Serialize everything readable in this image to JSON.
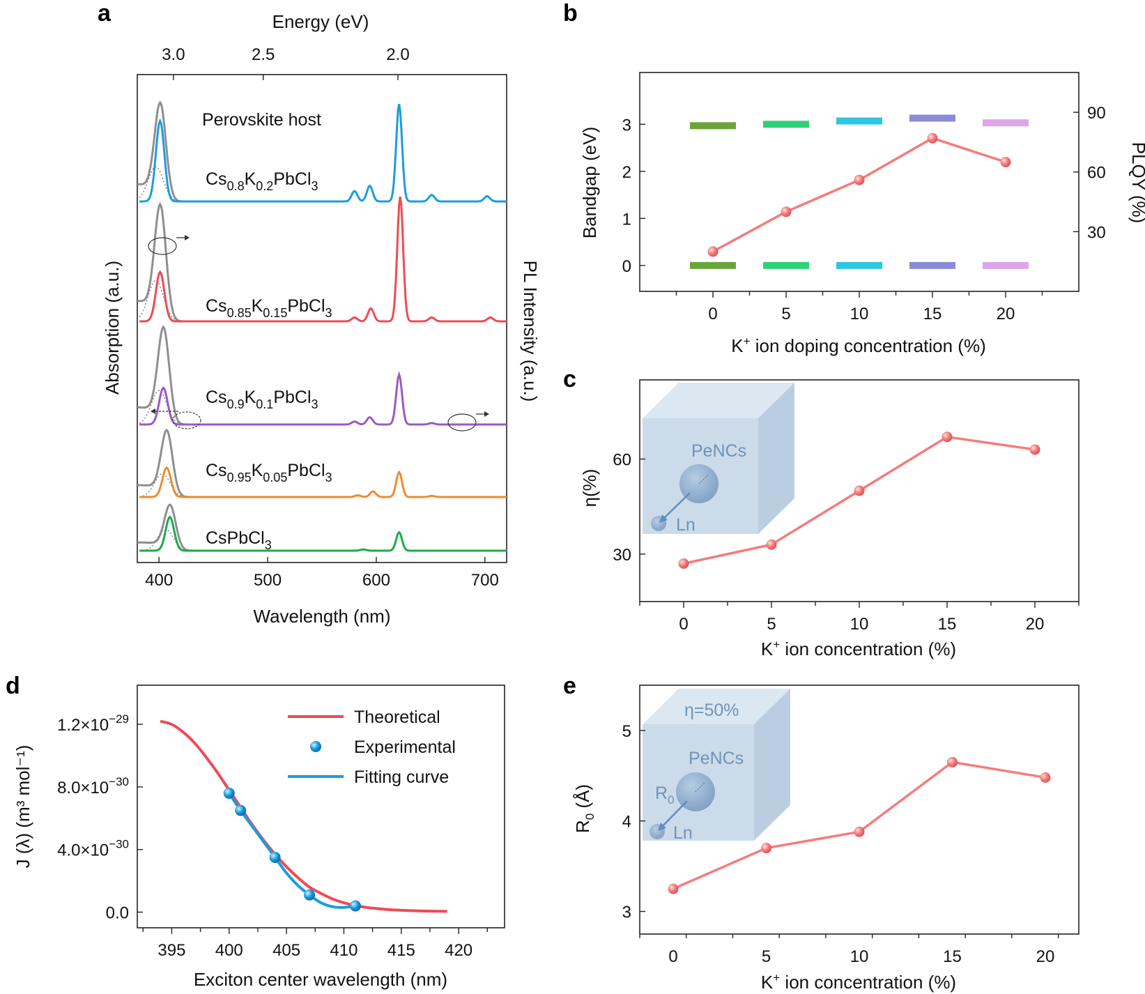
{
  "panels": {
    "a": "a",
    "b": "b",
    "c": "c",
    "d": "d",
    "e": "e"
  },
  "colors": {
    "gray": "#8e8e8e",
    "blue": "#1a9ce0",
    "red": "#ef4a55",
    "purple": "#9b59c6",
    "orange": "#f28a2e",
    "green": "#1aab4a",
    "pink_line": "#f47c7c",
    "inset_box": "#c6d7e8",
    "inset_text": "#6f93b8"
  },
  "chart_data": [
    {
      "panel": "a",
      "type": "line",
      "xlabel": "Wavelength (nm)",
      "x2label": "Energy (eV)",
      "ylabel": "Absorption (a.u.)",
      "y2label": "PL Intensity (a.u.)",
      "xlim": [
        380,
        720
      ],
      "xticks": [
        400,
        500,
        600,
        700
      ],
      "x2ticks": [
        3.0,
        2.5,
        2.0
      ],
      "annotation": "Perovskite host",
      "series": [
        {
          "name": "Cs0.8K0.2PbCl3",
          "label_base": "Cs",
          "sub1": "0.8",
          "mid": "K",
          "sub2": "0.2",
          "tail": "PbCl",
          "sub3": "3",
          "abs_peak_nm": 401,
          "abs_height": 1.0,
          "pl_host_nm": 401,
          "pl_host_height": 0.62,
          "pl_ln_peaks": [
            [
              580,
              0.08
            ],
            [
              594,
              0.12
            ],
            [
              621,
              0.75
            ],
            [
              651,
              0.05
            ],
            [
              702,
              0.04
            ]
          ],
          "color": "blue"
        },
        {
          "name": "Cs0.85K0.15PbCl3",
          "label_base": "Cs",
          "sub1": "0.85",
          "mid": "K",
          "sub2": "0.15",
          "tail": "PbCl",
          "sub3": "3",
          "abs_peak_nm": 401,
          "abs_height": 1.0,
          "pl_host_nm": 401,
          "pl_host_height": 0.38,
          "pl_ln_peaks": [
            [
              580,
              0.03
            ],
            [
              595,
              0.1
            ],
            [
              622,
              0.96
            ],
            [
              651,
              0.03
            ],
            [
              705,
              0.03
            ]
          ],
          "color": "red"
        },
        {
          "name": "Cs0.9K0.1PbCl3",
          "label_base": "Cs",
          "sub1": "0.9",
          "mid": "K",
          "sub2": "0.1",
          "tail": "PbCl",
          "sub3": "3",
          "abs_peak_nm": 404,
          "abs_height": 1.0,
          "pl_host_nm": 404,
          "pl_host_height": 0.5,
          "pl_ln_peaks": [
            [
              580,
              0.04
            ],
            [
              594,
              0.1
            ],
            [
              621,
              0.68
            ],
            [
              651,
              0.02
            ]
          ],
          "color": "purple"
        },
        {
          "name": "Cs0.95K0.05PbCl3",
          "label_base": "Cs",
          "sub1": "0.95",
          "mid": "K",
          "sub2": "0.05",
          "tail": "PbCl",
          "sub3": "3",
          "abs_peak_nm": 407,
          "abs_height": 1.0,
          "pl_host_nm": 407,
          "pl_host_height": 0.52,
          "pl_ln_peaks": [
            [
              583,
              0.03
            ],
            [
              597,
              0.1
            ],
            [
              621,
              0.44
            ],
            [
              651,
              0.02
            ]
          ],
          "color": "orange"
        },
        {
          "name": "CsPbCl3",
          "label_base": "CsPbCl",
          "sub1": "3",
          "mid": "",
          "sub2": "",
          "tail": "",
          "sub3": "",
          "abs_peak_nm": 410,
          "abs_height": 0.75,
          "pl_host_nm": 410,
          "pl_host_height": 0.55,
          "pl_ln_peaks": [
            [
              588,
              0.02
            ],
            [
              621,
              0.3
            ]
          ],
          "color": "green"
        }
      ]
    },
    {
      "panel": "b",
      "type": "line",
      "xlabel_pre": "K",
      "xlabel_sup": "+",
      "xlabel_post": " ion doping concentration (%)",
      "ylabel": "Bandgap (eV)",
      "y2label": "PLQY (%)",
      "x": [
        0,
        5,
        10,
        15,
        20
      ],
      "xlim": [
        -5,
        25
      ],
      "ylim": [
        -0.55,
        4.1
      ],
      "y2lim": [
        0,
        110
      ],
      "yticks": [
        0,
        1,
        2,
        3
      ],
      "y2ticks": [
        30,
        60,
        90
      ],
      "bandgap_top": [
        2.97,
        3.0,
        3.07,
        3.13,
        3.03
      ],
      "bandgap_bottom": [
        0,
        0,
        0,
        0,
        0
      ],
      "bar_colors": [
        "#6aa53c",
        "#2ed178",
        "#2ec7e3",
        "#8a8ad6",
        "#dca6e8"
      ],
      "plqy": [
        20,
        40,
        56,
        77,
        65
      ]
    },
    {
      "panel": "c",
      "type": "line",
      "xlabel_pre": "K",
      "xlabel_sup": "+",
      "xlabel_post": " ion concentration (%)",
      "ylabel": "η(%)",
      "x": [
        0,
        5,
        10,
        15,
        20
      ],
      "y": [
        27,
        33,
        50,
        67,
        63
      ],
      "xlim": [
        -2.5,
        22.5
      ],
      "ylim": [
        15,
        85
      ],
      "yticks": [
        30,
        60
      ],
      "xticks": [
        0,
        5,
        10,
        15,
        20
      ],
      "inset_labels": {
        "host": "PeNCs",
        "ion": "Ln"
      }
    },
    {
      "panel": "d",
      "type": "line",
      "xlabel": "Exciton center wavelength (nm)",
      "ylabel": "J (λ) (m³ mol⁻¹)",
      "xlim": [
        392,
        424
      ],
      "ylim": [
        -0.1,
        1.45
      ],
      "xticks": [
        395,
        400,
        405,
        410,
        415,
        420
      ],
      "yticks": [
        {
          "v": 0.0,
          "base": "0.0",
          "exp": ""
        },
        {
          "v": 0.4,
          "base": "4.0×10",
          "exp": "−30"
        },
        {
          "v": 0.8,
          "base": "8.0×10",
          "exp": "−30"
        },
        {
          "v": 1.2,
          "base": "1.2×10",
          "exp": "−29"
        }
      ],
      "y_unit_note": "values in units of 1e-29",
      "theoretical": {
        "x": [
          394,
          395,
          396,
          397,
          398,
          399,
          400,
          401,
          402,
          403,
          404,
          405,
          406,
          407,
          408,
          409,
          410,
          411,
          412,
          413,
          414,
          415,
          416,
          417,
          418,
          419
        ],
        "y": [
          1.22,
          1.2,
          1.15,
          1.08,
          0.99,
          0.89,
          0.78,
          0.67,
          0.56,
          0.46,
          0.37,
          0.29,
          0.22,
          0.16,
          0.12,
          0.085,
          0.06,
          0.042,
          0.03,
          0.022,
          0.016,
          0.012,
          0.009,
          0.007,
          0.006,
          0.005
        ]
      },
      "experimental": {
        "x": [
          400,
          401,
          404,
          407,
          411
        ],
        "y": [
          0.76,
          0.65,
          0.35,
          0.11,
          0.04
        ]
      },
      "fitting": {
        "x": [
          400,
          401,
          402,
          403,
          404,
          405,
          406,
          407,
          408,
          409,
          410,
          411
        ],
        "y": [
          0.76,
          0.65,
          0.55,
          0.45,
          0.35,
          0.25,
          0.17,
          0.11,
          0.06,
          0.035,
          0.03,
          0.04
        ]
      },
      "legend": [
        "Theoretical",
        "Experimental",
        "Fitting curve"
      ]
    },
    {
      "panel": "e",
      "type": "line",
      "xlabel_pre": "K",
      "xlabel_sup": "+",
      "xlabel_post": " ion concentration (%)",
      "ylabel_pre": "R",
      "ylabel_sub": "0",
      "ylabel_post": " (Å)",
      "x": [
        0,
        5,
        10,
        15,
        20
      ],
      "y": [
        3.25,
        3.7,
        3.88,
        4.65,
        4.48
      ],
      "xlim": [
        -1.8,
        21.8
      ],
      "ylim": [
        2.75,
        5.5
      ],
      "yticks": [
        3,
        4,
        5
      ],
      "xticks": [
        0,
        5,
        10,
        15,
        20
      ],
      "inset_labels": {
        "eta": "η=50%",
        "host": "PeNCs",
        "r0_base": "R",
        "r0_sub": "0",
        "ion": "Ln"
      }
    }
  ]
}
